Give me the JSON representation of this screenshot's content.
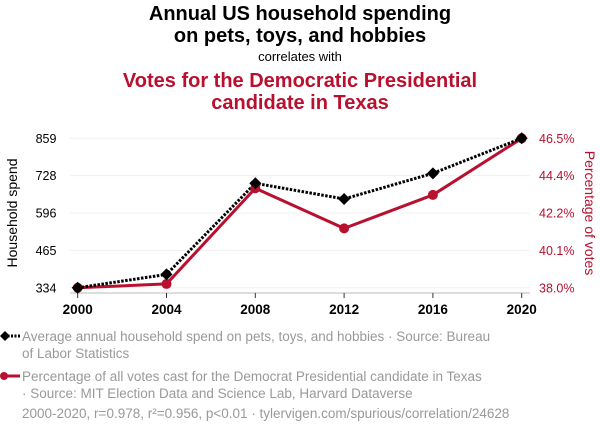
{
  "title": {
    "line1": "Annual US household spending",
    "line2": "on pets, toys, and hobbies",
    "correlates": "correlates with",
    "line3": "Votes for the Democratic Presidential",
    "line4": "candidate in Texas"
  },
  "colors": {
    "series1": "#000000",
    "series2": "#b8102e",
    "muted": "#999999"
  },
  "chart_data": {
    "type": "line",
    "x": [
      2000,
      2004,
      2008,
      2012,
      2016,
      2020
    ],
    "xticks": [
      "2000",
      "2004",
      "2008",
      "2012",
      "2016",
      "2020"
    ],
    "ylabel_left": "Household spend",
    "ylabel_right": "Percentage of votes",
    "yticks_left": [
      "859",
      "728",
      "596",
      "465",
      "334"
    ],
    "yticks_right": [
      "46.5%",
      "44.4%",
      "42.2%",
      "40.1%",
      "38.0%"
    ],
    "ylim_left": [
      334,
      859
    ],
    "ylim_right": [
      38.0,
      46.5
    ],
    "grid": true,
    "series": [
      {
        "name": "Average annual household spend on pets, toys, and hobbies",
        "axis": "left",
        "style": "dotted-diamond",
        "values": [
          334,
          381,
          701,
          646,
          736,
          859
        ]
      },
      {
        "name": "Percentage of all votes cast for the Democrat Presidential candidate in Texas",
        "axis": "right",
        "style": "solid-circle",
        "values": [
          38.0,
          38.22,
          43.66,
          41.38,
          43.28,
          46.5
        ]
      }
    ]
  },
  "legend": {
    "item1_line1": "Average annual household spend on pets, toys, and hobbies · Source: Bureau",
    "item1_line2": "of Labor Statistics",
    "item2_line1": "Percentage of all votes cast for the Democrat Presidential candidate in Texas",
    "item2_line2": "· Source: MIT Election Data and Science Lab, Harvard Dataverse"
  },
  "footer": "2000-2020, r=0.978, r²=0.956, p<0.01 · tylervigen.com/spurious/correlation/24628"
}
